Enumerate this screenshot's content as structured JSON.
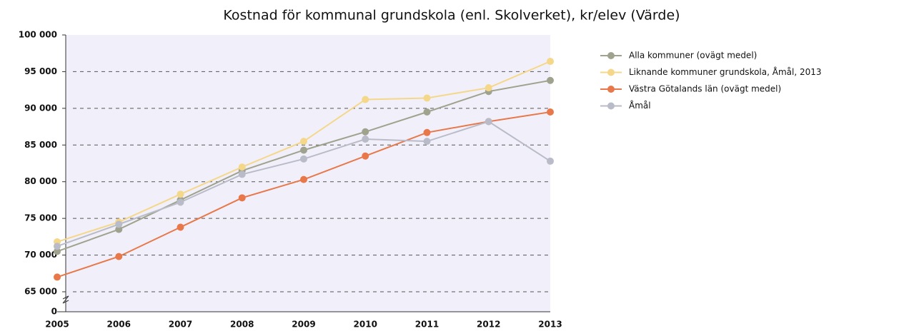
{
  "chart_data": {
    "type": "line",
    "title": "Kostnad för kommunal grundskola (enl. Skolverket), kr/elev (Värde)",
    "categories": [
      "2005",
      "2006",
      "2007",
      "2008",
      "2009",
      "2010",
      "2011",
      "2012",
      "2013"
    ],
    "series": [
      {
        "name": "Alla kommuner (ovägt medel)",
        "color": "#9fa38e",
        "values": [
          70500,
          73500,
          77500,
          81500,
          84300,
          86800,
          89500,
          92300,
          93800
        ]
      },
      {
        "name": "Liknande kommuner grundskola, Åmål, 2013",
        "color": "#f5d78a",
        "values": [
          71800,
          74500,
          78300,
          82000,
          85500,
          91200,
          91400,
          92800,
          96400
        ]
      },
      {
        "name": "Västra Götalands län (ovägt medel)",
        "color": "#e8784a",
        "values": [
          67000,
          69800,
          73800,
          77800,
          80300,
          83500,
          86700,
          88200,
          89500
        ]
      },
      {
        "name": "Åmål",
        "color": "#b9bcc8",
        "values": [
          71200,
          74200,
          77200,
          81000,
          83100,
          85800,
          85500,
          88200,
          82800
        ]
      }
    ],
    "ylim": [
      0,
      100000
    ],
    "yticks": [
      0,
      {
        "value": 65000,
        "label": "65 000"
      },
      {
        "value": 70000,
        "label": "70 000"
      },
      {
        "value": 75000,
        "label": "75 000"
      },
      {
        "value": 80000,
        "label": "80 000"
      },
      {
        "value": 85000,
        "label": "85 000"
      },
      {
        "value": 90000,
        "label": "90 000"
      },
      {
        "value": 95000,
        "label": "95 000"
      },
      {
        "value": 100000,
        "label": "100 000"
      }
    ],
    "axis_break": true,
    "grid": true,
    "legend": "right"
  }
}
